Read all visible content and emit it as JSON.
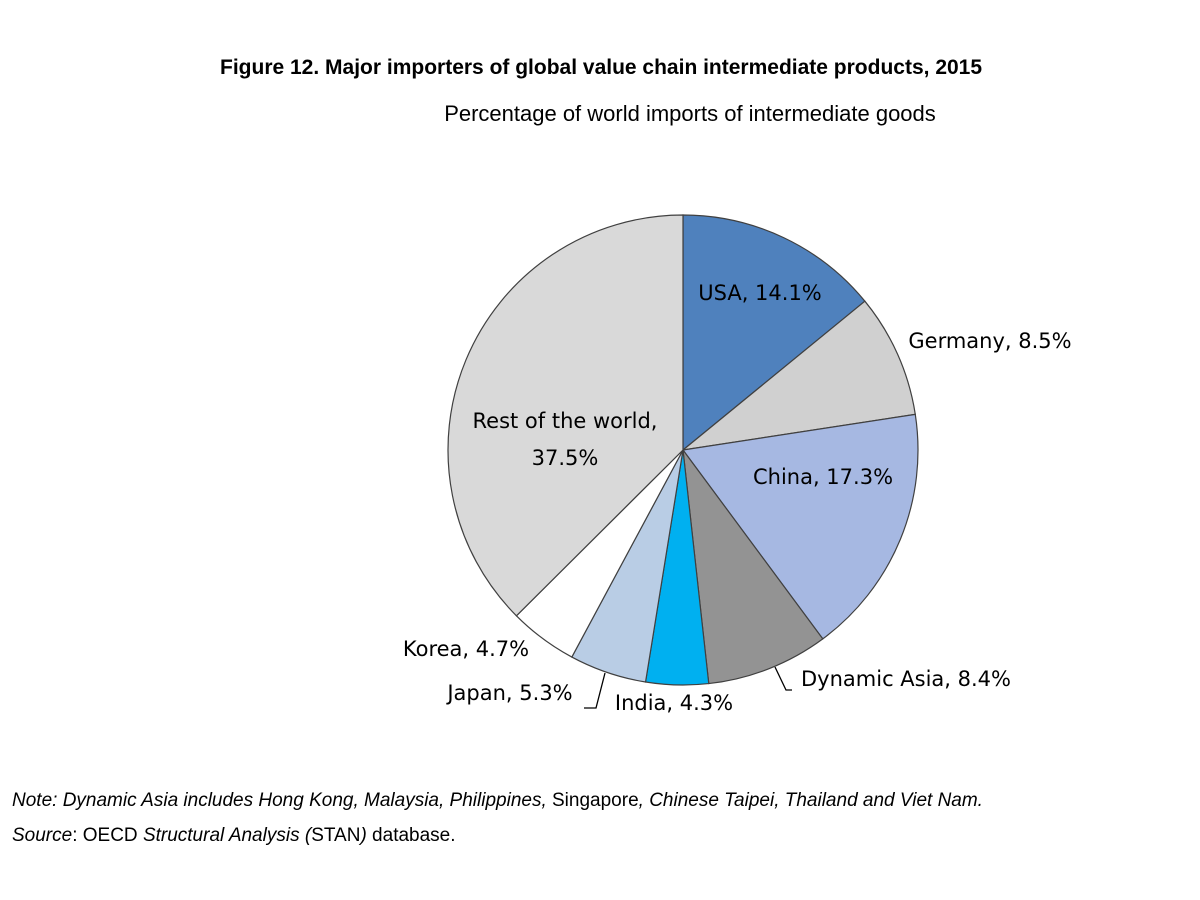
{
  "title": "Figure 12. Major importers of global value chain intermediate products, 2015",
  "subtitle": "Percentage of world imports of intermediate goods",
  "chart_data": {
    "type": "pie",
    "title": "Figure 12. Major importers of global value chain intermediate products, 2015",
    "subtitle": "Percentage of world imports of intermediate goods",
    "start": "12 o'clock",
    "direction": "clockwise",
    "slices": [
      {
        "label": "USA, 14.1%",
        "name": "USA",
        "value": 14.1,
        "color": "#4f81bd"
      },
      {
        "label": "Germany, 8.5%",
        "name": "Germany",
        "value": 8.5,
        "color": "#d0d0d0"
      },
      {
        "label": "China, 17.3%",
        "name": "China",
        "value": 17.3,
        "color": "#a6b8e2"
      },
      {
        "label": "Dynamic Asia, 8.4%",
        "name": "Dynamic Asia",
        "value": 8.4,
        "color": "#939393"
      },
      {
        "label": "India, 4.3%",
        "name": "India",
        "value": 4.3,
        "color": "#00b0f0"
      },
      {
        "label": "Japan, 5.3%",
        "name": "Japan",
        "value": 5.3,
        "color": "#b9cde5"
      },
      {
        "label": "Korea, 4.7%",
        "name": "Korea",
        "value": 4.7,
        "color": "#ffffff"
      },
      {
        "label": "Rest of the world, 37.5%",
        "name": "Rest of the world",
        "value": 37.5,
        "color": "#d9d9d9"
      }
    ]
  },
  "note": {
    "note_part1": "Note: Dynamic Asia includes Hong Kong, Malaysia, Philippines,",
    "note_part2": " Singapore",
    "note_part3": ", Chinese Taipei, Thailand and Viet Nam.",
    "source_part1": "Source",
    "source_part2": ": OECD ",
    "source_part3": "Structural Analysis (",
    "source_part4": "STAN",
    "source_part5": ")",
    "source_part6": " database."
  }
}
